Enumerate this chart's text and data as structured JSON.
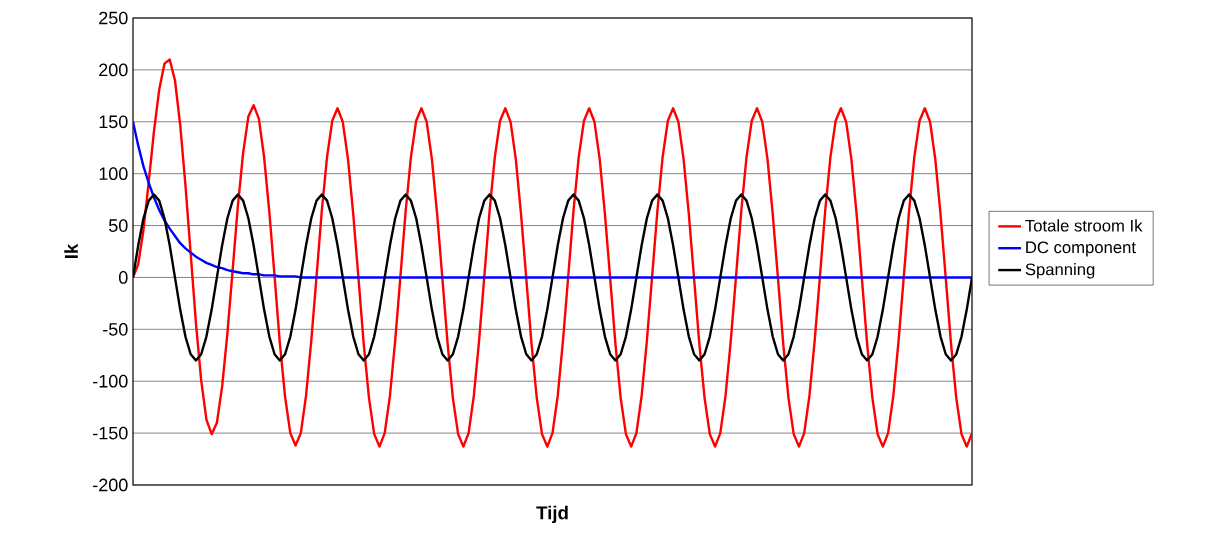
{
  "chart_data": {
    "type": "line",
    "xlabel": "Tijd",
    "ylabel": "Ik",
    "categories": [
      null,
      null,
      null,
      null,
      null,
      null,
      null,
      null,
      null,
      null,
      null,
      null,
      null,
      null,
      null,
      null,
      null,
      null,
      null,
      null,
      null,
      null,
      null,
      null,
      null,
      null,
      null,
      null,
      null,
      null,
      null,
      null,
      null,
      null,
      null,
      null,
      null,
      null,
      null,
      null,
      null,
      null,
      null,
      null,
      null,
      null,
      null,
      null,
      null,
      null,
      null,
      null,
      null,
      null,
      null,
      null,
      null,
      null,
      null,
      null,
      null,
      null,
      null,
      null,
      null,
      null,
      null,
      null,
      null,
      null,
      null,
      null,
      null,
      null,
      null,
      null,
      null,
      null,
      null,
      null,
      null,
      null,
      null,
      null,
      null,
      null,
      null,
      null,
      null,
      null,
      null,
      null,
      null,
      null,
      null,
      null,
      null,
      null,
      null,
      null,
      null,
      null,
      null,
      null,
      null,
      null,
      null,
      null,
      null,
      null,
      null,
      null,
      null,
      null,
      null,
      null,
      null,
      null,
      null,
      null,
      null,
      null,
      null,
      null,
      null,
      null,
      null,
      null,
      null,
      null,
      null,
      null,
      null,
      null,
      null,
      null,
      null,
      null,
      null,
      null,
      null,
      null,
      null,
      null,
      null,
      null,
      null,
      null,
      null,
      null,
      null,
      null,
      null,
      null,
      null,
      null,
      null,
      null,
      null,
      null,
      null
    ],
    "series": [
      {
        "name": "Totale stroom Ik",
        "color": "#ff0000",
        "values": [
          0,
          13,
          46,
          92,
          141,
          181,
          206,
          210,
          190,
          147,
          89,
          23,
          -44,
          -99,
          -137,
          -151,
          -140,
          -105,
          -54,
          7,
          69,
          120,
          155,
          166,
          153,
          116,
          63,
          1,
          -63,
          -115,
          -150,
          -162,
          -150,
          -114,
          -61,
          1,
          64,
          116,
          151,
          163,
          150,
          114,
          61,
          -1,
          -64,
          -116,
          -151,
          -163,
          -150,
          -114,
          -61,
          1,
          64,
          116,
          151,
          163,
          150,
          114,
          61,
          -1,
          -64,
          -116,
          -151,
          -163,
          -150,
          -114,
          -61,
          1,
          64,
          116,
          151,
          163,
          150,
          114,
          61,
          -1,
          -64,
          -116,
          -151,
          -163,
          -150,
          -114,
          -61,
          1,
          64,
          116,
          151,
          163,
          150,
          114,
          61,
          -1,
          -64,
          -116,
          -151,
          -163,
          -150,
          -114,
          -61,
          1,
          64,
          116,
          151,
          163,
          150,
          114,
          61,
          -1,
          -64,
          -116,
          -151,
          -163,
          -150,
          -114,
          -61,
          1,
          64,
          116,
          151,
          163,
          150,
          114,
          61,
          -1,
          -64,
          -116,
          -151,
          -163,
          -150,
          -114,
          -61,
          1,
          64,
          116,
          151,
          163,
          150,
          114,
          61,
          -1,
          -64,
          -116,
          -151,
          -163,
          -150,
          -114,
          -61,
          1,
          64,
          116,
          151,
          163,
          150,
          114,
          61,
          -1,
          -64,
          -116,
          -151,
          -163,
          -150
        ]
      },
      {
        "name": "DC component",
        "color": "#0000ff",
        "values": [
          150,
          127,
          107,
          91,
          77,
          65,
          55,
          47,
          40,
          33,
          28,
          24,
          20,
          17,
          14,
          12,
          10,
          9,
          7,
          6,
          5,
          4,
          4,
          3,
          3,
          2,
          2,
          2,
          1,
          1,
          1,
          1,
          0,
          0,
          0,
          0,
          0,
          0,
          0,
          0,
          0,
          0,
          0,
          0,
          0,
          0,
          0,
          0,
          0,
          0,
          0,
          0,
          0,
          0,
          0,
          0,
          0,
          0,
          0,
          0,
          0,
          0,
          0,
          0,
          0,
          0,
          0,
          0,
          0,
          0,
          0,
          0,
          0,
          0,
          0,
          0,
          0,
          0,
          0,
          0,
          0,
          0,
          0,
          0,
          0,
          0,
          0,
          0,
          0,
          0,
          0,
          0,
          0,
          0,
          0,
          0,
          0,
          0,
          0,
          0,
          0,
          0,
          0,
          0,
          0,
          0,
          0,
          0,
          0,
          0,
          0,
          0,
          0,
          0,
          0,
          0,
          0,
          0,
          0,
          0,
          0,
          0,
          0,
          0,
          0,
          0,
          0,
          0,
          0,
          0,
          0,
          0,
          0,
          0,
          0,
          0,
          0,
          0,
          0,
          0,
          0,
          0,
          0,
          0,
          0,
          0,
          0,
          0,
          0,
          0,
          0,
          0,
          0,
          0,
          0,
          0,
          0,
          0,
          0,
          0,
          0
        ]
      },
      {
        "name": "Spanning",
        "color": "#000000",
        "values": [
          0,
          31,
          57,
          74,
          80,
          74,
          57,
          31,
          0,
          -31,
          -57,
          -74,
          -80,
          -74,
          -57,
          -31,
          0,
          31,
          57,
          74,
          80,
          74,
          57,
          31,
          0,
          -31,
          -57,
          -74,
          -80,
          -74,
          -57,
          -31,
          0,
          31,
          57,
          74,
          80,
          74,
          57,
          31,
          0,
          -31,
          -57,
          -74,
          -80,
          -74,
          -57,
          -31,
          0,
          31,
          57,
          74,
          80,
          74,
          57,
          31,
          0,
          -31,
          -57,
          -74,
          -80,
          -74,
          -57,
          -31,
          0,
          31,
          57,
          74,
          80,
          74,
          57,
          31,
          0,
          -31,
          -57,
          -74,
          -80,
          -74,
          -57,
          -31,
          0,
          31,
          57,
          74,
          80,
          74,
          57,
          31,
          0,
          -31,
          -57,
          -74,
          -80,
          -74,
          -57,
          -31,
          0,
          31,
          57,
          74,
          80,
          74,
          57,
          31,
          0,
          -31,
          -57,
          -74,
          -80,
          -74,
          -57,
          -31,
          0,
          31,
          57,
          74,
          80,
          74,
          57,
          31,
          0,
          -31,
          -57,
          -74,
          -80,
          -74,
          -57,
          -31,
          0,
          31,
          57,
          74,
          80,
          74,
          57,
          31,
          0,
          -31,
          -57,
          -74,
          -80,
          -74,
          -57,
          -31,
          0,
          31,
          57,
          74,
          80,
          74,
          57,
          31,
          0,
          -31,
          -57,
          -74,
          -80,
          -74,
          -57,
          -31,
          0
        ]
      }
    ],
    "ylim": [
      -200,
      250
    ],
    "yticks": [
      -200,
      -150,
      -100,
      -50,
      0,
      50,
      100,
      150,
      200,
      250
    ],
    "grid": "y",
    "legend": "right",
    "line_style": "solid"
  }
}
